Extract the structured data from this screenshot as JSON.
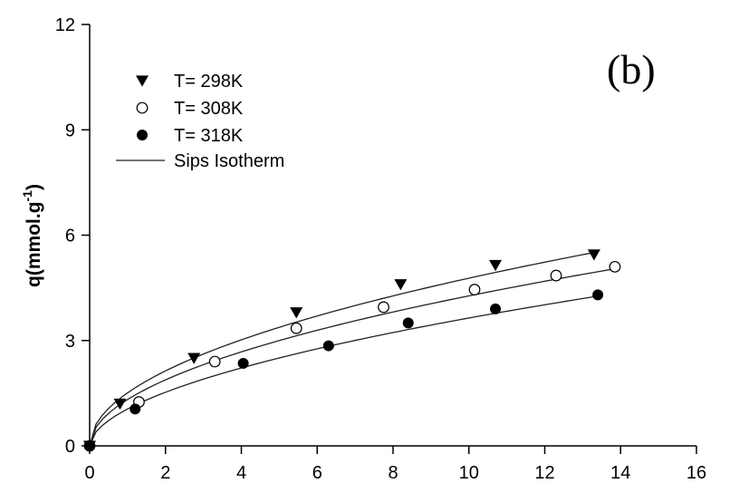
{
  "chart_data": {
    "type": "scatter",
    "panel_label": "(b)",
    "xlabel": "",
    "ylabel": "q(mmol.g",
    "ylabel_sup": "-1",
    "ylabel_close": ")",
    "xlim": [
      0,
      16
    ],
    "ylim": [
      0,
      12
    ],
    "xticks": [
      0,
      2,
      4,
      6,
      8,
      10,
      12,
      14,
      16
    ],
    "yticks": [
      0,
      3,
      6,
      9,
      12
    ],
    "x_tick_labels": [
      "0",
      "2",
      "4",
      "6",
      "8",
      "10",
      "12",
      "14",
      "16"
    ],
    "y_tick_labels": [
      "0",
      "3",
      "6",
      "9",
      "12"
    ],
    "legend_position": "top-left",
    "series": [
      {
        "name": "T= 298K",
        "marker": "triangle-down-filled",
        "x": [
          0,
          0.8,
          2.75,
          5.45,
          8.2,
          10.7,
          13.3
        ],
        "y": [
          0,
          1.2,
          2.5,
          3.8,
          4.6,
          5.15,
          5.45
        ]
      },
      {
        "name": "T= 308K",
        "marker": "circle-open",
        "x": [
          0,
          1.3,
          3.3,
          5.45,
          7.75,
          10.15,
          12.3,
          13.85
        ],
        "y": [
          0,
          1.25,
          2.4,
          3.35,
          3.95,
          4.45,
          4.85,
          5.1
        ]
      },
      {
        "name": "T= 318K",
        "marker": "circle-filled",
        "x": [
          0,
          1.2,
          4.05,
          6.3,
          8.4,
          10.7,
          13.4
        ],
        "y": [
          0,
          1.05,
          2.35,
          2.85,
          3.5,
          3.9,
          4.3
        ]
      }
    ],
    "fit": {
      "name": "Sips Isotherm",
      "curves": [
        {
          "x_max": 13.3,
          "a": 1.51,
          "b": 0.5
        },
        {
          "x_max": 13.85,
          "a": 1.32,
          "b": 0.51
        },
        {
          "x_max": 13.4,
          "a": 1.05,
          "b": 0.54
        }
      ]
    }
  }
}
